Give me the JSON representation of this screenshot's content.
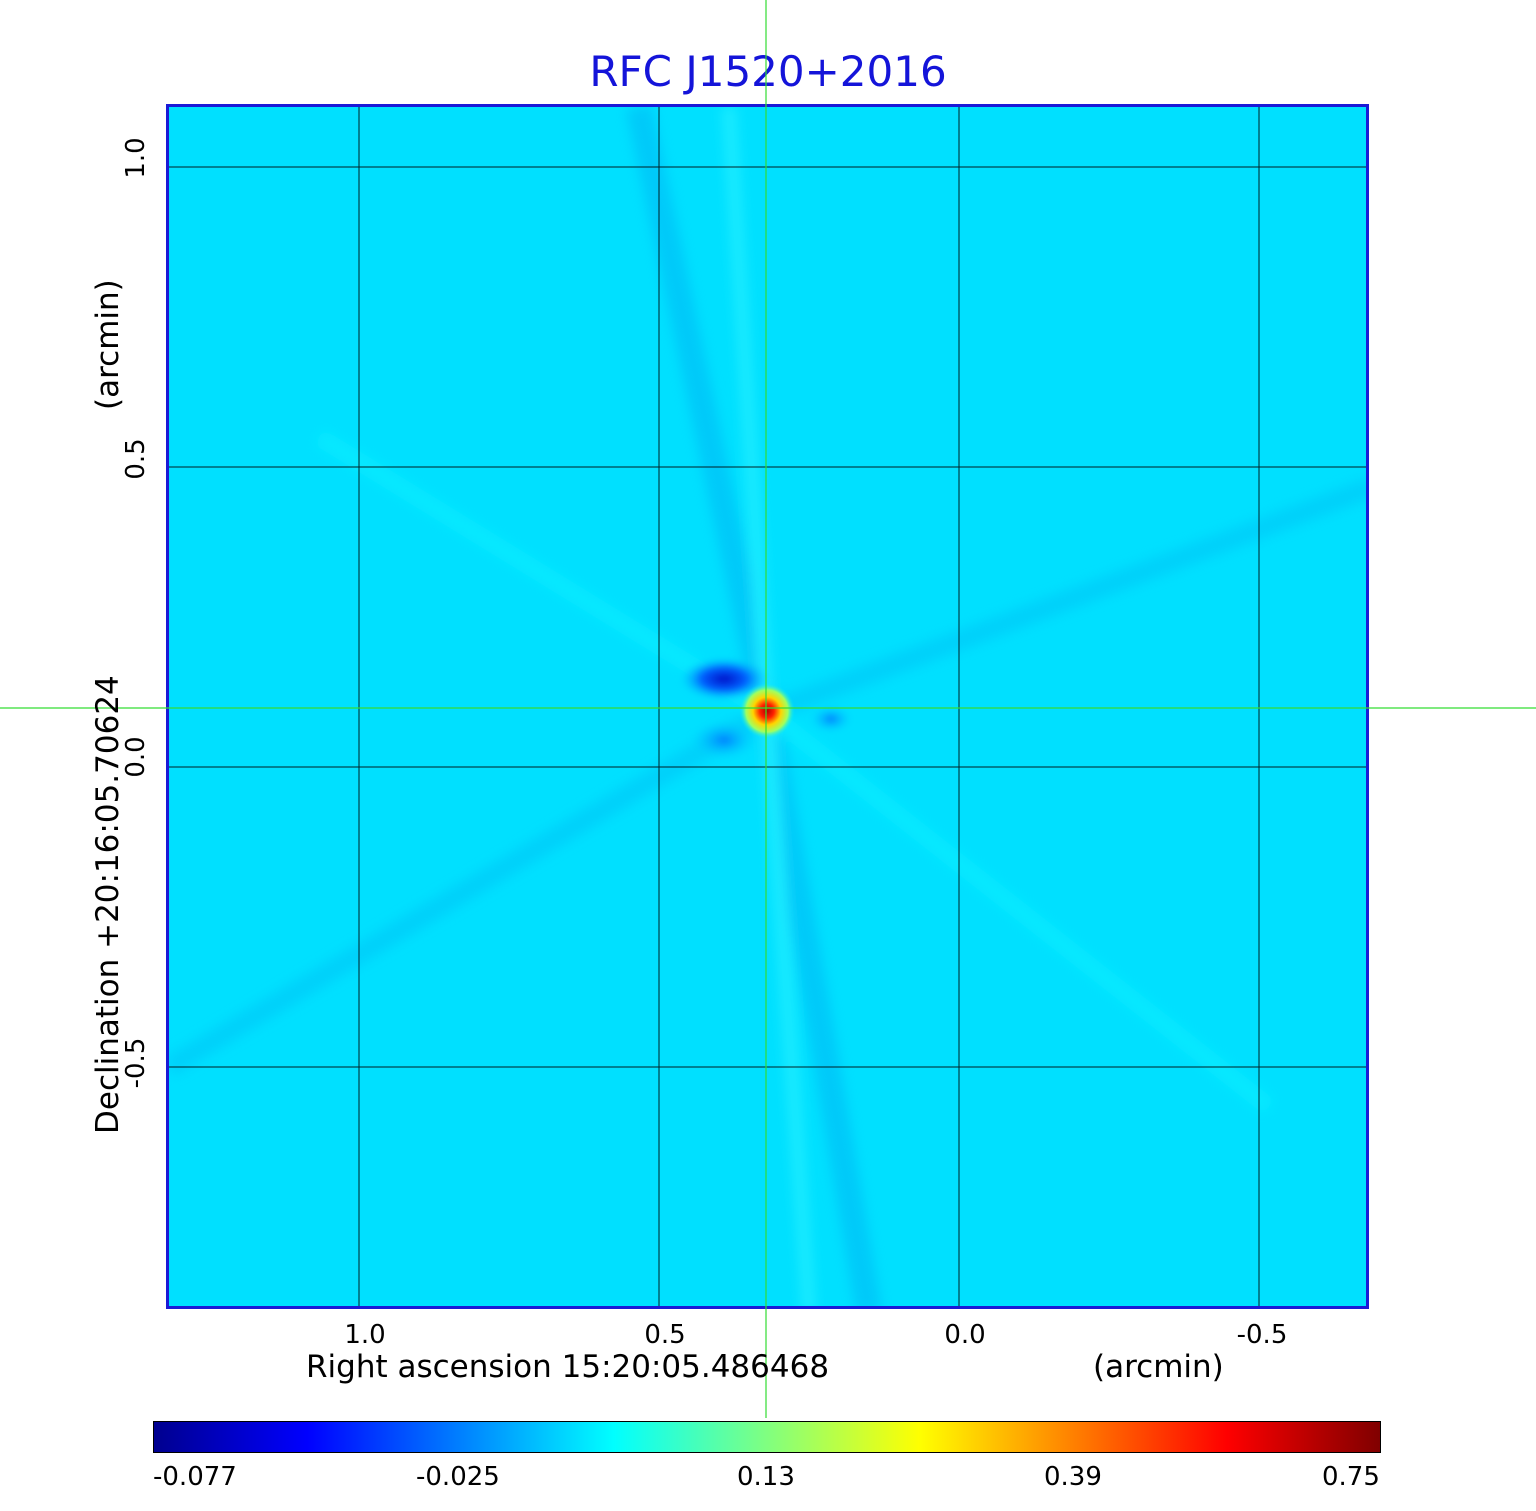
{
  "title": "RFC J1520+2016",
  "x_axis": {
    "label": "Right ascension  15:20:05.486468",
    "unit": "(arcmin)",
    "ticks": [
      "1.0",
      "0.5",
      "0.0",
      "-0.5"
    ]
  },
  "y_axis": {
    "label": "Declination  +20:16:05.70624",
    "unit": "(arcmin)",
    "ticks": [
      "1.0",
      "0.5",
      "0.0",
      "-0.5"
    ]
  },
  "colorbar": {
    "colormap": "jet",
    "labels": [
      "-0.077",
      "-0.025",
      "0.13",
      "0.39",
      "0.75"
    ]
  },
  "colors": {
    "title": "#1414d9",
    "frame": "#1a1ad6",
    "background_map": "#00e0ff",
    "crosshair": "#33dd33",
    "grid": "#000000"
  }
}
